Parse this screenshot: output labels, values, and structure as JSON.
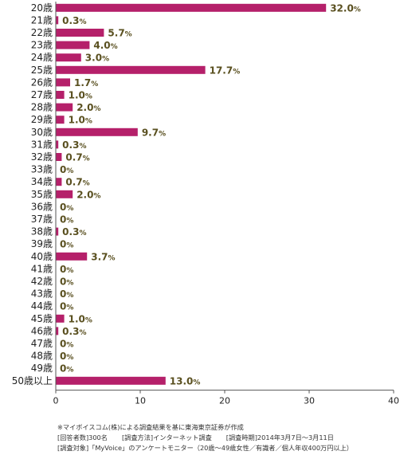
{
  "chart_data": {
    "type": "bar",
    "orientation": "horizontal",
    "categories": [
      "20歳",
      "21歳",
      "22歳",
      "23歳",
      "24歳",
      "25歳",
      "26歳",
      "27歳",
      "28歳",
      "29歳",
      "30歳",
      "31歳",
      "32歳",
      "33歳",
      "34歳",
      "35歳",
      "36歳",
      "37歳",
      "38歳",
      "39歳",
      "40歳",
      "41歳",
      "42歳",
      "43歳",
      "44歳",
      "45歳",
      "46歳",
      "47歳",
      "48歳",
      "49歳",
      "50歳以上"
    ],
    "values": [
      32.0,
      0.3,
      5.7,
      4.0,
      3.0,
      17.7,
      1.7,
      1.0,
      2.0,
      1.0,
      9.7,
      0.3,
      0.7,
      0,
      0.7,
      2.0,
      0,
      0,
      0.3,
      0,
      3.7,
      0,
      0,
      0,
      0,
      1.0,
      0.3,
      0,
      0,
      0,
      13.0
    ],
    "value_labels": [
      "32.0",
      "0.3",
      "5.7",
      "4.0",
      "3.0",
      "17.7",
      "1.7",
      "1.0",
      "2.0",
      "1.0",
      "9.7",
      "0.3",
      "0.7",
      "0",
      "0.7",
      "2.0",
      "0",
      "0",
      "0.3",
      "0",
      "3.7",
      "0",
      "0",
      "0",
      "0",
      "1.0",
      "0.3",
      "0",
      "0",
      "0",
      "13.0"
    ],
    "unit": "%",
    "xlim": [
      0,
      40
    ],
    "xticks": [
      0,
      10,
      20,
      30,
      40
    ],
    "grid": false,
    "bar_color": "#b5206a",
    "label_color": "#5a5020"
  },
  "notes": {
    "source": "※マイボイスコム(株)による調査結果を基に東海東京証券が作成",
    "respondents": "[回答者数]300名",
    "method": "[調査方法]インターネット調査",
    "period": "[調査時期]2014年3月7日～3月11日",
    "target": "[調査対象]「MyVoice」のアンケートモニター（20歳～49歳女性／有識者／個人年収400万円以上）"
  }
}
